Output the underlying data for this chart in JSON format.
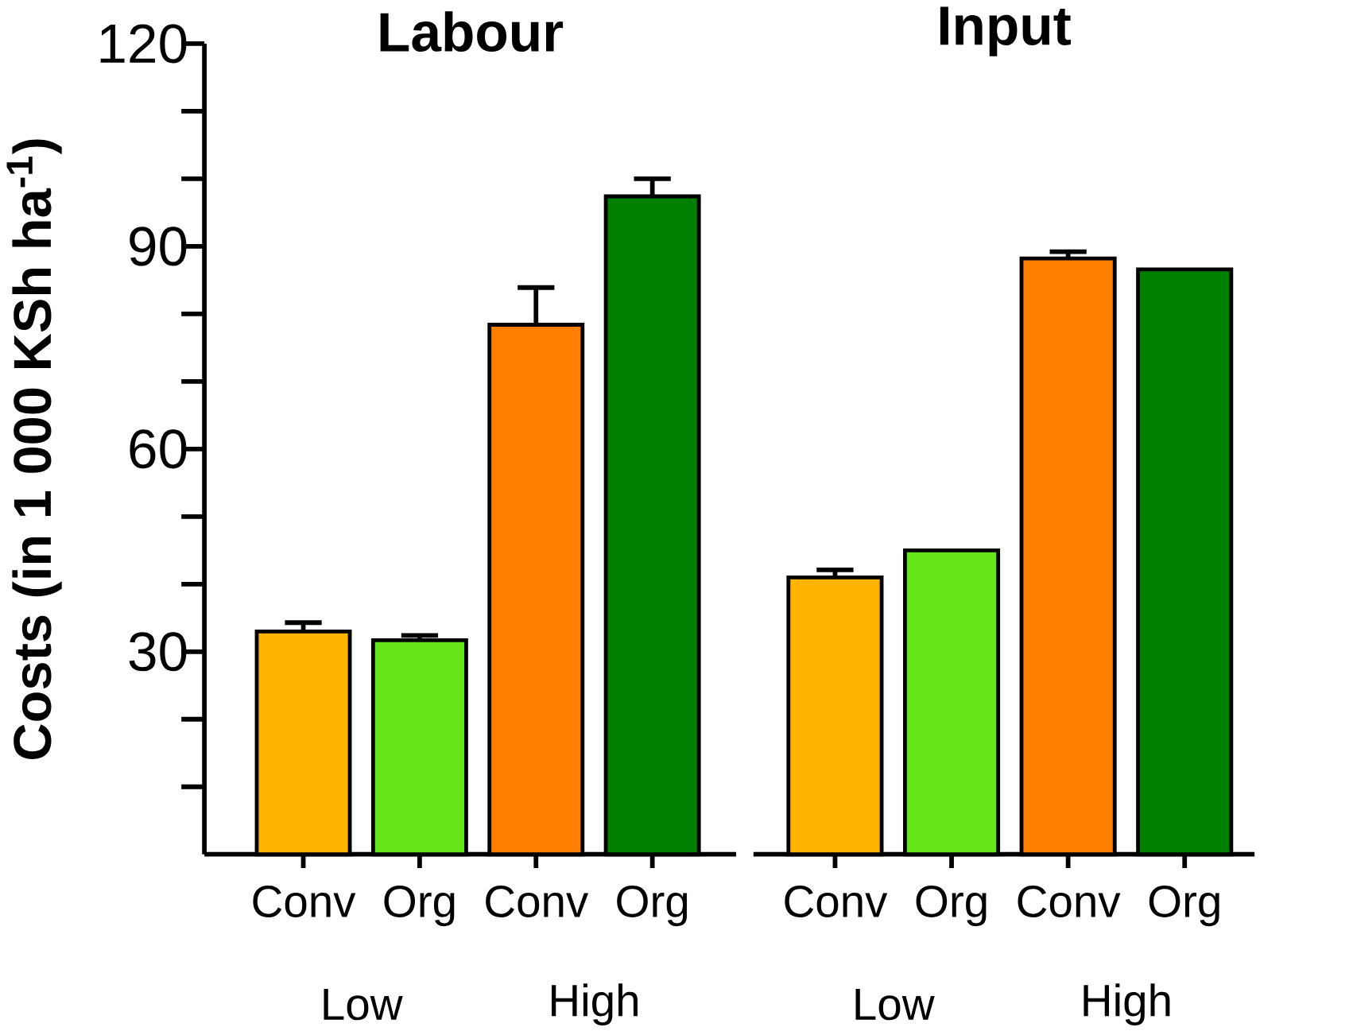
{
  "chart_data": [
    {
      "type": "bar",
      "title": "Labour",
      "ylabel": "Costs (in 1 000 KSh ha$^{-1}$)",
      "categories": [
        "Conv",
        "Org",
        "Conv",
        "Org"
      ],
      "values": [
        33.0,
        31.7,
        78.4,
        97.4
      ],
      "errors": [
        1.3,
        0.7,
        5.5,
        2.6
      ],
      "colors": [
        "#ffb400",
        "#66e619",
        "#ff7f00",
        "#007f00"
      ],
      "ylim": [
        0,
        120
      ],
      "yticks": [
        {
          "value": 10,
          "label": null
        },
        {
          "value": 20,
          "label": null
        },
        30,
        {
          "value": 40,
          "label": null
        },
        {
          "value": 50,
          "label": null
        },
        60,
        {
          "value": 70,
          "label": null
        },
        {
          "value": 80,
          "label": null
        },
        90,
        {
          "value": 100,
          "label": null
        },
        {
          "value": 110,
          "label": null
        },
        120
      ],
      "annotations": [
        "Low",
        "High"
      ]
    },
    {
      "type": "bar",
      "title": "Input",
      "categories": [
        "Conv",
        "Org",
        "Conv",
        "Org"
      ],
      "values": [
        41.0,
        45.0,
        88.2,
        86.6
      ],
      "errors": [
        1.1,
        null,
        1.0,
        null
      ],
      "colors": [
        "#ffb400",
        "#66e619",
        "#ff7f00",
        "#007f00"
      ],
      "ylim": [
        0,
        120
      ],
      "tick_labels": "x",
      "annotations": [
        "Low",
        "High"
      ]
    }
  ]
}
